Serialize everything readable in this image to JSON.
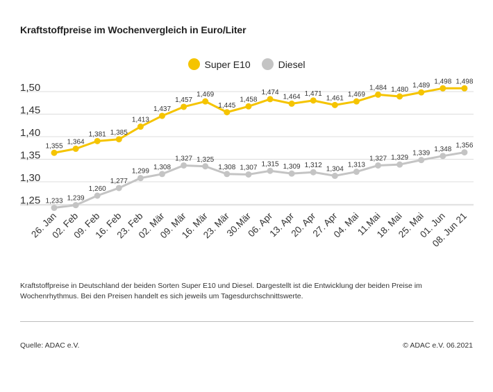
{
  "header": {
    "title": "Kraftstoffpreise im Wochenvergleich in Euro/Liter"
  },
  "chart_data": {
    "type": "line",
    "title": "Kraftstoffpreise im Wochenvergleich in Euro/Liter",
    "categories": [
      "26. Jan",
      "02. Feb",
      "09. Feb",
      "16. Feb",
      "23. Feb",
      "02. Mär",
      "09. Mär",
      "16. Mär",
      "23. Mär",
      "30.Mär",
      "06. Apr",
      "13. Apr",
      "20. Apr",
      "27. Apr",
      "04. Mai",
      "11.Mai",
      "18. Mai",
      "25. Mai",
      "01. Jun",
      "08. Jun 21"
    ],
    "series": [
      {
        "name": "Super E10",
        "color": "#f5c400",
        "values": [
          1.355,
          1.364,
          1.381,
          1.385,
          1.413,
          1.437,
          1.457,
          1.469,
          1.445,
          1.458,
          1.474,
          1.464,
          1.471,
          1.461,
          1.469,
          1.484,
          1.48,
          1.489,
          1.498,
          1.498
        ],
        "labels": [
          "1,355",
          "1,364",
          "1,381",
          "1,385",
          "1,413",
          "1,437",
          "1,457",
          "1,469",
          "1,445",
          "1,458",
          "1,474",
          "1,464",
          "1,471",
          "1,461",
          "1,469",
          "1,484",
          "1,480",
          "1,489",
          "1,498",
          "1,498"
        ]
      },
      {
        "name": "Diesel",
        "color": "#c4c4c4",
        "values": [
          1.233,
          1.239,
          1.26,
          1.277,
          1.299,
          1.308,
          1.327,
          1.325,
          1.308,
          1.307,
          1.315,
          1.309,
          1.312,
          1.304,
          1.313,
          1.327,
          1.329,
          1.339,
          1.348,
          1.356
        ],
        "labels": [
          "1,233",
          "1,239",
          "1,260",
          "1,277",
          "1,299",
          "1,308",
          "1,327",
          "1,325",
          "1,308",
          "1,307",
          "1,315",
          "1,309",
          "1,312",
          "1,304",
          "1,313",
          "1,327",
          "1,329",
          "1,339",
          "1,348",
          "1,356"
        ]
      }
    ],
    "yticks": [
      1.25,
      1.3,
      1.35,
      1.4,
      1.45,
      1.5
    ],
    "ytick_labels": [
      "1,25",
      "1,30",
      "1,35",
      "1,40",
      "1,45",
      "1,50"
    ],
    "ylim": [
      1.25,
      1.5
    ],
    "grid": true,
    "legend_position": "top-center"
  },
  "footer": {
    "description": "Kraftstoffpreise in Deutschland der beiden Sorten Super E10 und Diesel. Dargestellt ist die Entwicklung der beiden Preise im Wochenrhythmus. Bei den Preisen handelt es sich jeweils um Tagesdurchschnittswerte.",
    "source": "Quelle: ADAC e.V.",
    "copyright": "© ADAC e.V. 06.2021"
  }
}
